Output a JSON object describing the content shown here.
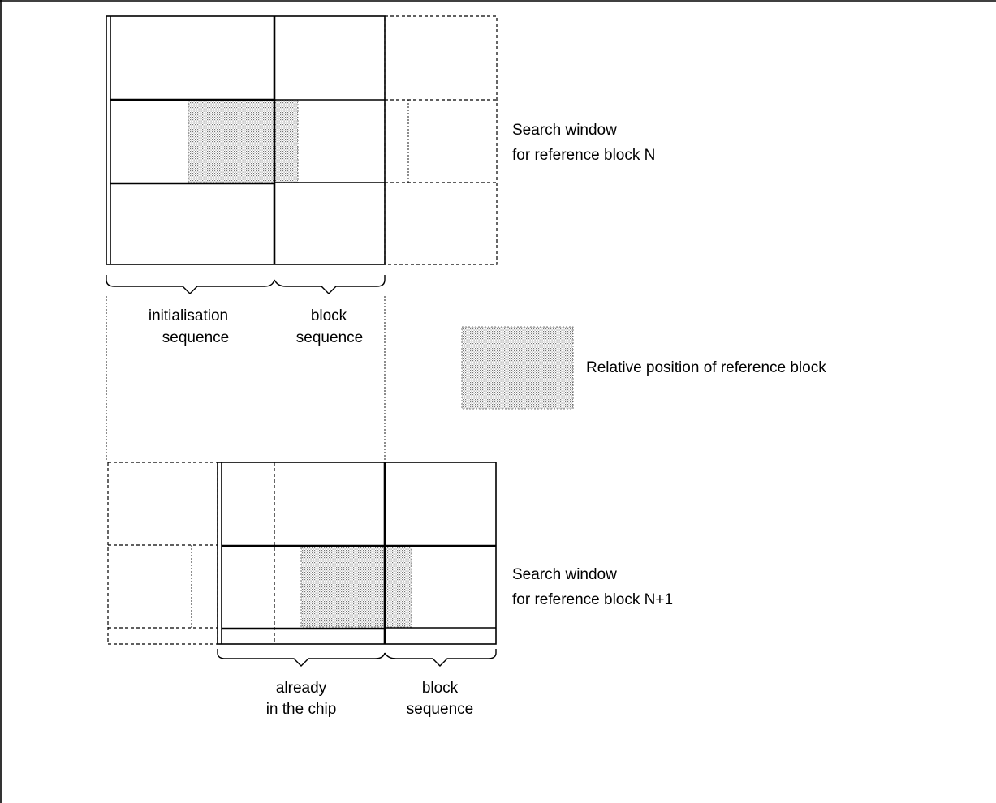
{
  "labels": {
    "window_n_line1": "Search window",
    "window_n_line2": "for reference block N",
    "window_n1_line1": "Search window",
    "window_n1_line2": "for reference block N+1",
    "legend": "Relative position of reference block",
    "init_line1": "initialisation",
    "init_line2": "sequence",
    "block_top_line1": "block",
    "block_top_line2": "sequence",
    "already_line1": "already",
    "already_line2": "in the chip",
    "block_bottom_line1": "block",
    "block_bottom_line2": "sequence"
  }
}
